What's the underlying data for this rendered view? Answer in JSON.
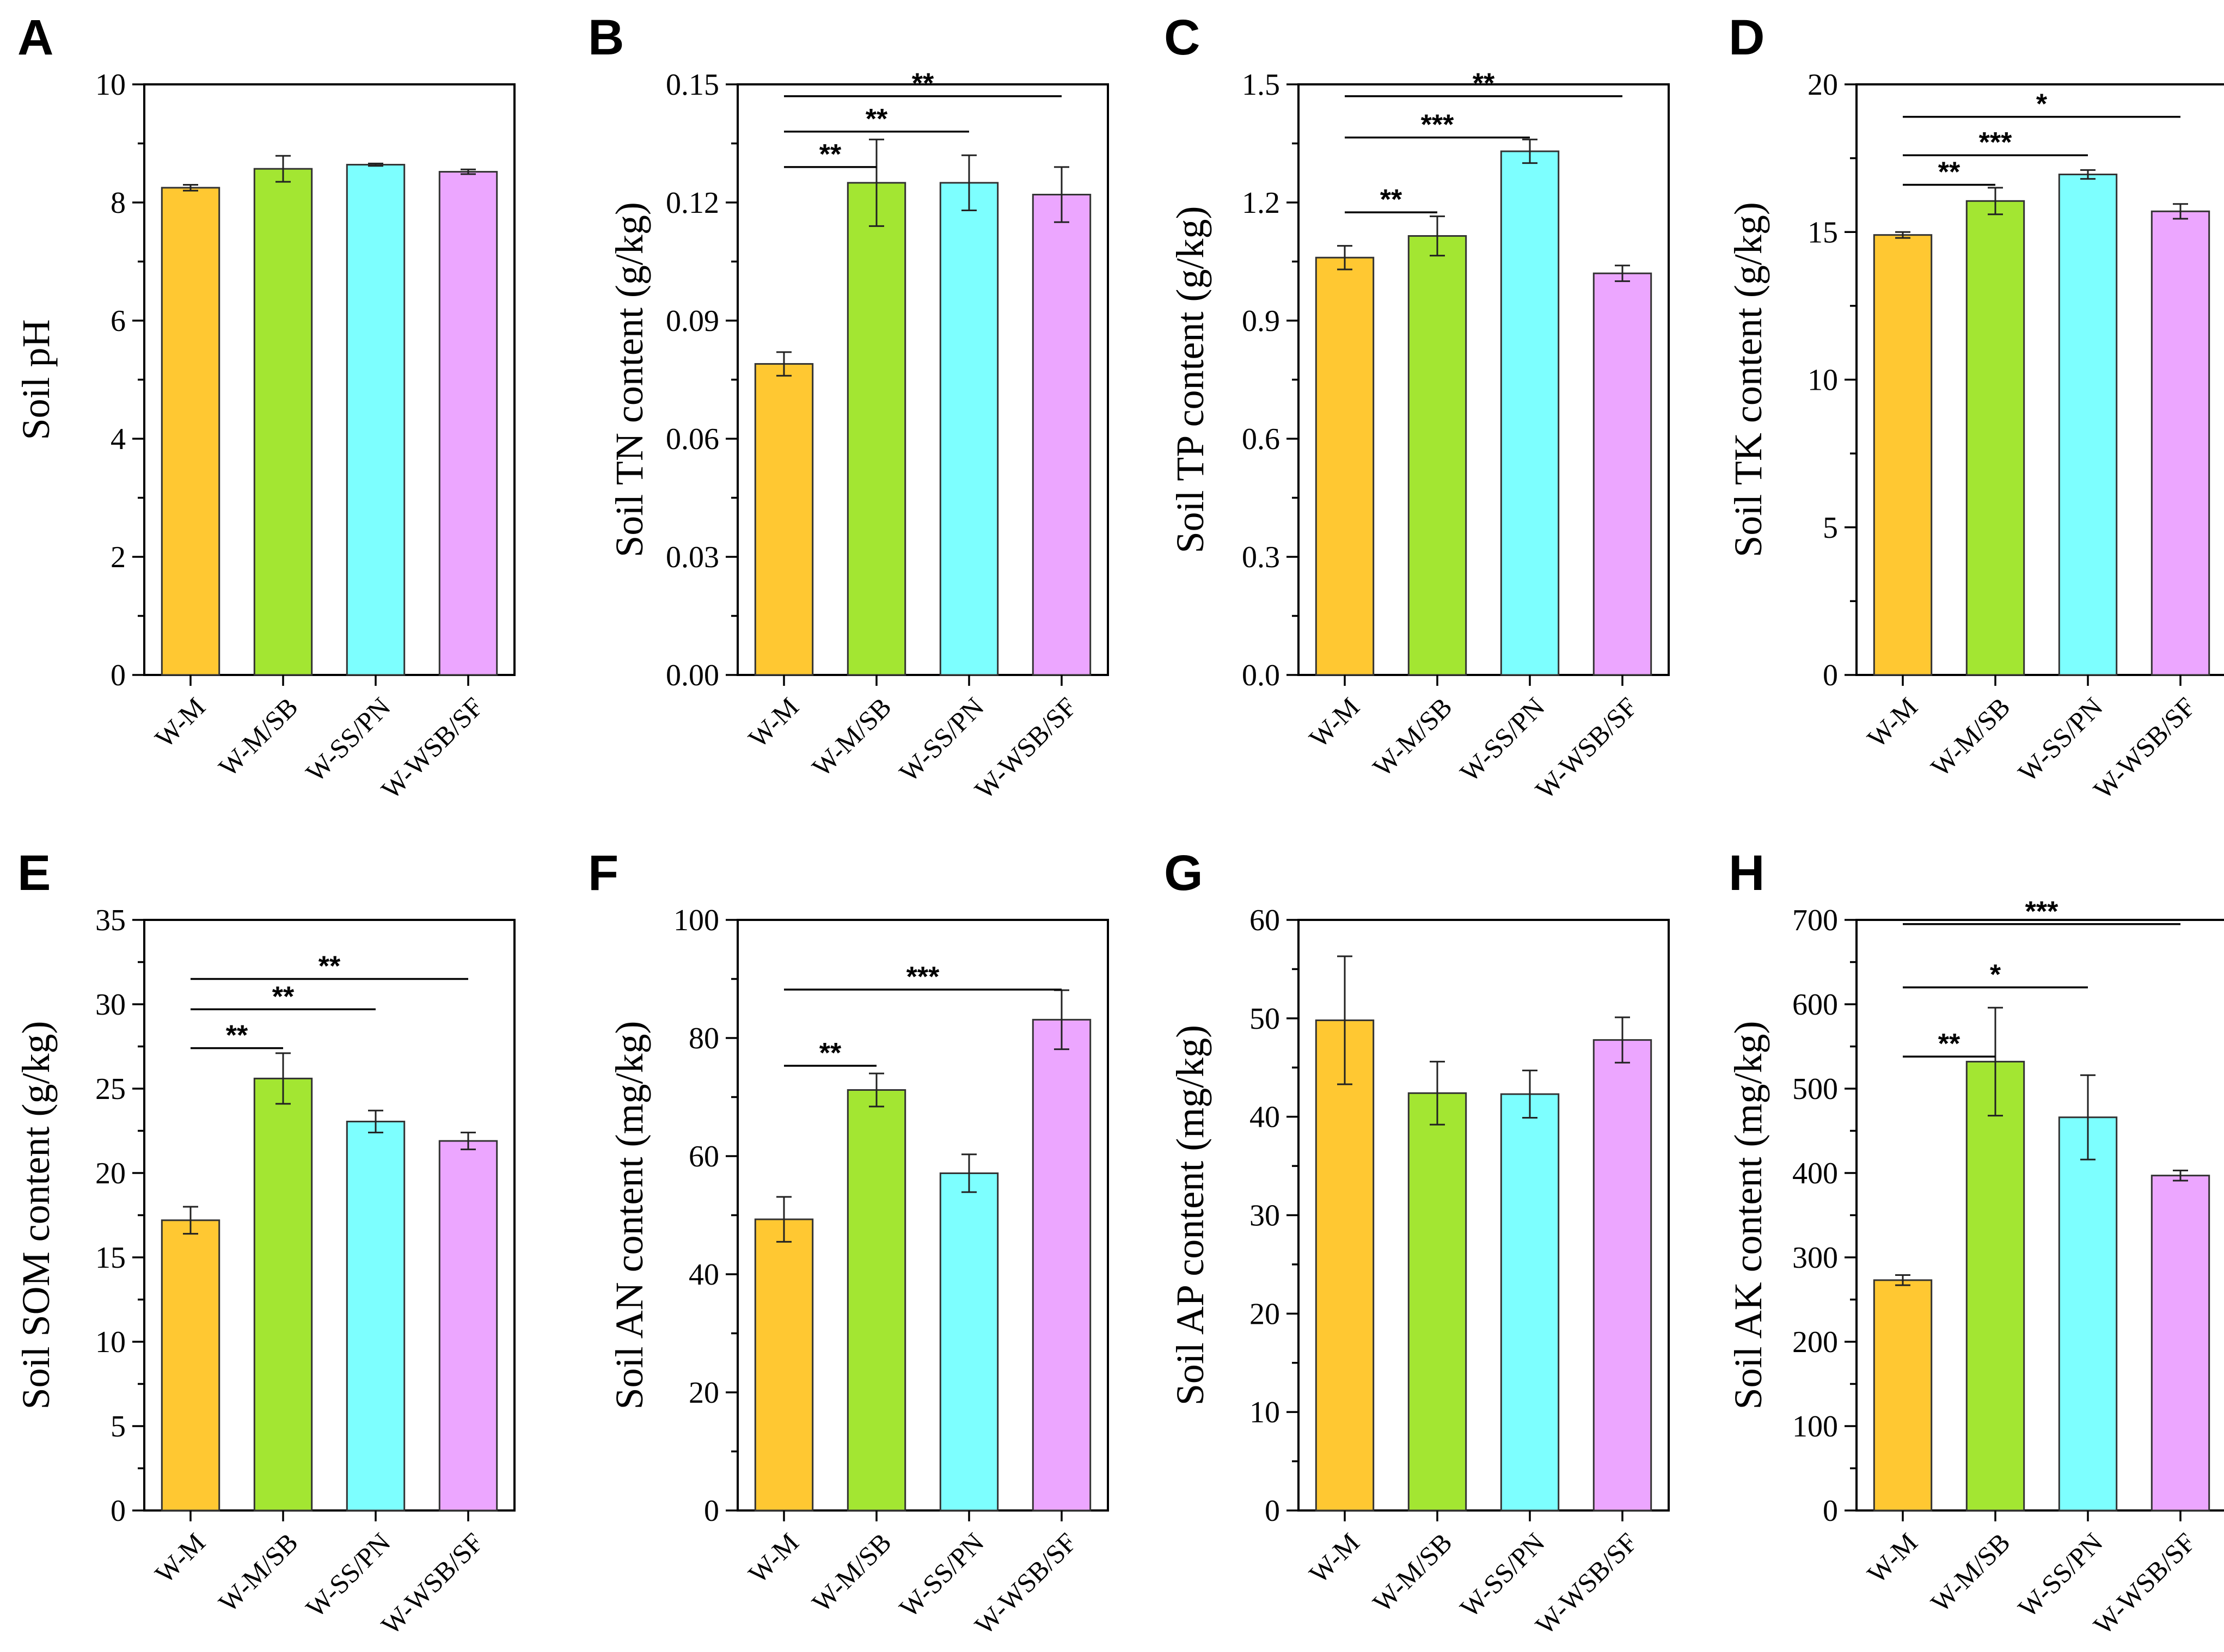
{
  "colors": [
    "#FFC832",
    "#A3E632",
    "#7DFFFF",
    "#ECA6FF"
  ],
  "chart_data": [
    {
      "type": "bar",
      "panel": "A",
      "title": "",
      "xlabel": "",
      "ylabel": "Soil pH",
      "categories": [
        "W-M",
        "W-M/SB",
        "W-SS/PN",
        "W-WSB/SF"
      ],
      "values": [
        8.25,
        8.57,
        8.64,
        8.52
      ],
      "errors": [
        0.05,
        0.22,
        0.02,
        0.04
      ],
      "ylim": [
        0,
        10
      ],
      "yticks": [
        0,
        2,
        4,
        6,
        8,
        10
      ],
      "ytick_labels": [
        "0",
        "2",
        "4",
        "6",
        "8",
        "10"
      ],
      "significance": []
    },
    {
      "type": "bar",
      "panel": "B",
      "title": "",
      "xlabel": "",
      "ylabel": "Soil TN content (g/kg)",
      "categories": [
        "W-M",
        "W-M/SB",
        "W-SS/PN",
        "W-WSB/SF"
      ],
      "values": [
        0.079,
        0.125,
        0.125,
        0.122
      ],
      "errors": [
        0.003,
        0.011,
        0.007,
        0.007
      ],
      "ylim": [
        0,
        0.15
      ],
      "yticks": [
        0,
        0.03,
        0.06,
        0.09,
        0.12,
        0.15
      ],
      "ytick_labels": [
        "0.00",
        "0.03",
        "0.06",
        "0.09",
        "0.12",
        "0.15"
      ],
      "significance": [
        {
          "from": 0,
          "to": 1,
          "y": 0.129,
          "label": "**"
        },
        {
          "from": 0,
          "to": 2,
          "y": 0.138,
          "label": "**"
        },
        {
          "from": 0,
          "to": 3,
          "y": 0.147,
          "label": "**"
        }
      ]
    },
    {
      "type": "bar",
      "panel": "C",
      "title": "",
      "xlabel": "",
      "ylabel": "Soil TP content (g/kg)",
      "categories": [
        "W-M",
        "W-M/SB",
        "W-SS/PN",
        "W-WSB/SF"
      ],
      "values": [
        1.06,
        1.115,
        1.33,
        1.02
      ],
      "errors": [
        0.03,
        0.05,
        0.03,
        0.02
      ],
      "ylim": [
        0,
        1.5
      ],
      "yticks": [
        0,
        0.3,
        0.6,
        0.9,
        1.2,
        1.5
      ],
      "ytick_labels": [
        "0.0",
        "0.3",
        "0.6",
        "0.9",
        "1.2",
        "1.5"
      ],
      "significance": [
        {
          "from": 0,
          "to": 1,
          "y": 1.175,
          "label": "**"
        },
        {
          "from": 0,
          "to": 2,
          "y": 1.365,
          "label": "***"
        },
        {
          "from": 0,
          "to": 3,
          "y": 1.47,
          "label": "**"
        }
      ]
    },
    {
      "type": "bar",
      "panel": "D",
      "title": "",
      "xlabel": "",
      "ylabel": "Soil TK content (g/kg)",
      "categories": [
        "W-M",
        "W-M/SB",
        "W-SS/PN",
        "W-WSB/SF"
      ],
      "values": [
        14.9,
        16.05,
        16.95,
        15.7
      ],
      "errors": [
        0.1,
        0.45,
        0.15,
        0.25
      ],
      "ylim": [
        0,
        20
      ],
      "yticks": [
        0,
        5,
        10,
        15,
        20
      ],
      "ytick_labels": [
        "0",
        "5",
        "10",
        "15",
        "20"
      ],
      "significance": [
        {
          "from": 0,
          "to": 1,
          "y": 16.6,
          "label": "**"
        },
        {
          "from": 0,
          "to": 2,
          "y": 17.6,
          "label": "***"
        },
        {
          "from": 0,
          "to": 3,
          "y": 18.9,
          "label": "*"
        }
      ]
    },
    {
      "type": "bar",
      "panel": "E",
      "title": "",
      "xlabel": "",
      "ylabel": "Soil SOM content (g/kg)",
      "categories": [
        "W-M",
        "W-M/SB",
        "W-SS/PN",
        "W-WSB/SF"
      ],
      "values": [
        17.2,
        25.6,
        23.05,
        21.9
      ],
      "errors": [
        0.8,
        1.5,
        0.65,
        0.5
      ],
      "ylim": [
        0,
        35
      ],
      "yticks": [
        0,
        5,
        10,
        15,
        20,
        25,
        30,
        35
      ],
      "ytick_labels": [
        "0",
        "5",
        "10",
        "15",
        "20",
        "25",
        "30",
        "35"
      ],
      "significance": [
        {
          "from": 0,
          "to": 1,
          "y": 27.4,
          "label": "**"
        },
        {
          "from": 0,
          "to": 2,
          "y": 29.7,
          "label": "**"
        },
        {
          "from": 0,
          "to": 3,
          "y": 31.5,
          "label": "**"
        }
      ]
    },
    {
      "type": "bar",
      "panel": "F",
      "title": "",
      "xlabel": "",
      "ylabel": "Soil AN content (mg/kg)",
      "categories": [
        "W-M",
        "W-M/SB",
        "W-SS/PN",
        "W-WSB/SF"
      ],
      "values": [
        49.3,
        71.2,
        57.1,
        83.1
      ],
      "errors": [
        3.8,
        2.8,
        3.2,
        5.0
      ],
      "ylim": [
        0,
        100
      ],
      "yticks": [
        0,
        20,
        40,
        60,
        80,
        100
      ],
      "ytick_labels": [
        "0",
        "20",
        "40",
        "60",
        "80",
        "100"
      ],
      "significance": [
        {
          "from": 0,
          "to": 1,
          "y": 75.3,
          "label": "**"
        },
        {
          "from": 0,
          "to": 3,
          "y": 88.2,
          "label": "***"
        }
      ]
    },
    {
      "type": "bar",
      "panel": "G",
      "title": "",
      "xlabel": "",
      "ylabel": "Soil AP content (mg/kg)",
      "categories": [
        "W-M",
        "W-M/SB",
        "W-SS/PN",
        "W-WSB/SF"
      ],
      "values": [
        49.8,
        42.4,
        42.3,
        47.8
      ],
      "errors": [
        6.5,
        3.2,
        2.4,
        2.3
      ],
      "ylim": [
        0,
        60
      ],
      "yticks": [
        0,
        10,
        20,
        30,
        40,
        50,
        60
      ],
      "ytick_labels": [
        "0",
        "10",
        "20",
        "30",
        "40",
        "50",
        "60"
      ],
      "significance": []
    },
    {
      "type": "bar",
      "panel": "H",
      "title": "",
      "xlabel": "",
      "ylabel": "Soil AK content (mg/kg)",
      "categories": [
        "W-M",
        "W-M/SB",
        "W-SS/PN",
        "W-WSB/SF"
      ],
      "values": [
        273,
        532,
        466,
        397
      ],
      "errors": [
        6,
        64,
        50,
        6
      ],
      "ylim": [
        0,
        700
      ],
      "yticks": [
        0,
        100,
        200,
        300,
        400,
        500,
        600,
        700
      ],
      "ytick_labels": [
        "0",
        "100",
        "200",
        "300",
        "400",
        "500",
        "600",
        "700"
      ],
      "significance": [
        {
          "from": 0,
          "to": 1,
          "y": 538,
          "label": "**"
        },
        {
          "from": 0,
          "to": 2,
          "y": 620,
          "label": "*"
        },
        {
          "from": 0,
          "to": 3,
          "y": 695,
          "label": "***"
        }
      ]
    }
  ]
}
